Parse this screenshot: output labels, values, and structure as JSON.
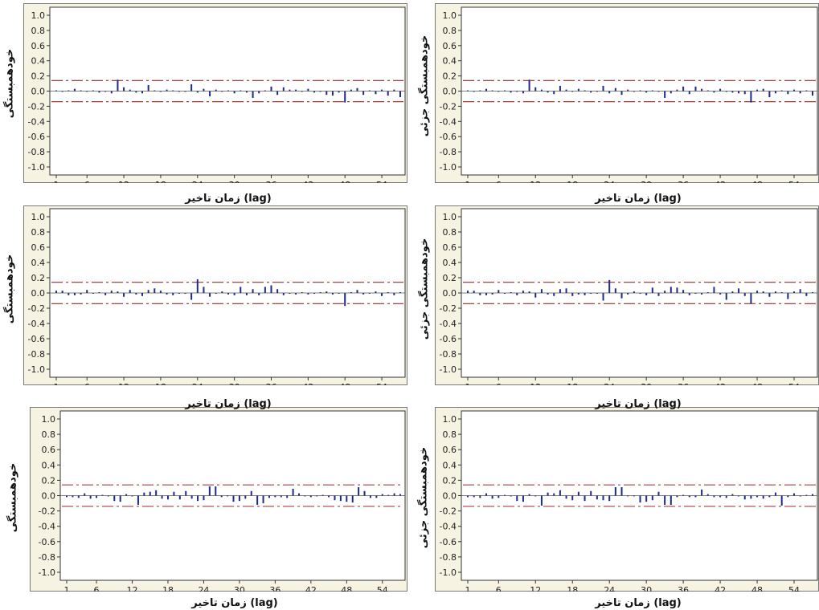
{
  "colors": {
    "frame_fill": "#f6f3e2",
    "plot_bg": "#ffffff",
    "bar": "#1d2a8c",
    "limit_line": "#9b2a2a",
    "zero_line": "#555555"
  },
  "axes_x_title": "زمان تاخیر (lag)",
  "chart_data": [
    {
      "type": "bar",
      "ylabel": "خودهمبستگی",
      "xlabel": "زمان تاخیر (lag)",
      "ylim": [
        -1.0,
        1.0
      ],
      "yticks": [
        1.0,
        0.8,
        0.6,
        0.4,
        0.2,
        0.0,
        -0.2,
        -0.4,
        -0.6,
        -0.8,
        -1.0
      ],
      "xticks": [
        1,
        6,
        12,
        18,
        24,
        30,
        36,
        42,
        48,
        54
      ],
      "lags": [
        1,
        57
      ],
      "limits": [
        0.14,
        -0.14
      ],
      "values": [
        0.01,
        -0.01,
        0.01,
        0.03,
        0.01,
        -0.01,
        0.01,
        -0.02,
        -0.01,
        -0.03,
        0.15,
        0.05,
        0.02,
        -0.02,
        -0.03,
        0.08,
        0.01,
        -0.01,
        0.02,
        0.01,
        -0.01,
        -0.01,
        0.09,
        -0.02,
        0.03,
        -0.07,
        0.02,
        -0.01,
        0.01,
        -0.03,
        0.01,
        -0.02,
        -0.09,
        -0.03,
        0.01,
        0.06,
        -0.05,
        0.05,
        0.02,
        0.02,
        -0.01,
        0.03,
        -0.02,
        -0.01,
        -0.05,
        -0.06,
        -0.02,
        -0.15,
        0.02,
        0.04,
        -0.05,
        0.01,
        -0.04,
        0.02,
        -0.06,
        0.02,
        -0.08
      ]
    },
    {
      "type": "bar",
      "ylabel": "خودهمبستگی جزئی",
      "xlabel": "زمان تاخیر (lag)",
      "ylim": [
        -1.0,
        1.0
      ],
      "yticks": [
        1.0,
        0.8,
        0.6,
        0.4,
        0.2,
        0.0,
        -0.2,
        -0.4,
        -0.6,
        -0.8,
        -1.0
      ],
      "xticks": [
        1,
        6,
        12,
        18,
        24,
        30,
        36,
        42,
        48,
        54
      ],
      "lags": [
        1,
        57
      ],
      "limits": [
        0.14,
        -0.14
      ],
      "values": [
        0.01,
        -0.01,
        0.01,
        0.03,
        0.01,
        -0.01,
        0.01,
        -0.02,
        -0.01,
        -0.03,
        0.15,
        0.05,
        0.02,
        -0.02,
        -0.04,
        0.07,
        0.02,
        -0.01,
        0.03,
        0.01,
        -0.02,
        -0.01,
        0.07,
        -0.03,
        0.04,
        -0.05,
        0.02,
        -0.01,
        0.01,
        -0.02,
        0.01,
        -0.01,
        -0.09,
        -0.03,
        0.02,
        0.06,
        -0.04,
        0.06,
        0.03,
        0.01,
        -0.02,
        0.03,
        -0.01,
        -0.02,
        -0.03,
        -0.04,
        -0.15,
        0.02,
        0.03,
        -0.08,
        -0.03,
        0.01,
        -0.04,
        0.02,
        -0.03,
        0.01,
        -0.06
      ]
    },
    {
      "type": "bar",
      "ylabel": "خودهمبستگی",
      "xlabel": "زمان تاخیر (lag)",
      "ylim": [
        -1.0,
        1.0
      ],
      "yticks": [
        1.0,
        0.8,
        0.6,
        0.4,
        0.2,
        0.0,
        -0.2,
        -0.4,
        -0.6,
        -0.8,
        -1.0
      ],
      "xticks": [
        1,
        6,
        12,
        18,
        24,
        30,
        36,
        42,
        48,
        54
      ],
      "lags": [
        1,
        57
      ],
      "limits": [
        0.14,
        -0.14
      ],
      "values": [
        0.03,
        0.03,
        -0.03,
        -0.03,
        -0.02,
        0.04,
        -0.01,
        0.01,
        -0.03,
        0.03,
        0.02,
        -0.05,
        0.04,
        -0.02,
        -0.04,
        0.04,
        0.06,
        0.03,
        -0.02,
        -0.03,
        -0.01,
        -0.01,
        -0.09,
        0.18,
        0.08,
        -0.05,
        -0.01,
        0.02,
        -0.02,
        -0.03,
        0.08,
        -0.03,
        0.05,
        -0.03,
        0.08,
        0.1,
        0.05,
        -0.03,
        -0.01,
        -0.02,
        0.01,
        -0.02,
        -0.01,
        0.01,
        0.02,
        -0.02,
        -0.01,
        -0.17,
        0.01,
        0.04,
        -0.02,
        -0.01,
        0.02,
        -0.04,
        0.01,
        -0.03,
        0.01
      ]
    },
    {
      "type": "bar",
      "ylabel": "خودهمبستگی جزئی",
      "xlabel": "زمان تاخیر (lag)",
      "ylim": [
        -1.0,
        1.0
      ],
      "yticks": [
        1.0,
        0.8,
        0.6,
        0.4,
        0.2,
        0.0,
        -0.2,
        -0.4,
        -0.6,
        -0.8,
        -1.0
      ],
      "xticks": [
        1,
        6,
        12,
        18,
        24,
        30,
        36,
        42,
        48,
        54
      ],
      "lags": [
        1,
        57
      ],
      "limits": [
        0.14,
        -0.14
      ],
      "values": [
        0.03,
        0.03,
        -0.03,
        -0.03,
        -0.02,
        0.04,
        -0.01,
        0.01,
        -0.03,
        0.03,
        0.02,
        -0.06,
        0.05,
        -0.02,
        -0.04,
        0.05,
        0.06,
        -0.04,
        -0.02,
        -0.03,
        -0.01,
        -0.01,
        -0.1,
        0.17,
        0.06,
        -0.07,
        -0.02,
        0.02,
        -0.01,
        -0.03,
        0.07,
        -0.04,
        0.03,
        0.08,
        0.07,
        0.04,
        -0.03,
        -0.01,
        -0.02,
        0.01,
        0.08,
        -0.02,
        -0.09,
        0.02,
        0.06,
        -0.04,
        -0.14,
        0.03,
        0.02,
        -0.05,
        0.02,
        0.01,
        -0.08,
        0.02,
        0.05,
        -0.04,
        0.01
      ]
    },
    {
      "type": "bar",
      "ylabel": "خودهمبستگی",
      "xlabel": "زمان تاخیر (lag)",
      "ylim": [
        -1.0,
        1.0
      ],
      "yticks": [
        1.0,
        0.8,
        0.6,
        0.4,
        0.2,
        0.0,
        -0.2,
        -0.4,
        -0.6,
        -0.8,
        -1.0
      ],
      "xticks": [
        1,
        6,
        12,
        18,
        24,
        30,
        36,
        42,
        48,
        54
      ],
      "lags": [
        1,
        57
      ],
      "limits": [
        0.14,
        -0.14
      ],
      "values": [
        -0.02,
        -0.02,
        -0.03,
        0.03,
        -0.04,
        -0.03,
        0.01,
        -0.01,
        -0.07,
        -0.08,
        0.02,
        -0.01,
        -0.12,
        0.04,
        0.05,
        0.07,
        -0.04,
        -0.05,
        0.05,
        -0.05,
        0.06,
        -0.04,
        -0.07,
        -0.06,
        0.12,
        0.12,
        -0.02,
        -0.01,
        -0.08,
        -0.07,
        -0.04,
        0.06,
        -0.12,
        -0.1,
        -0.03,
        -0.02,
        -0.02,
        -0.03,
        0.09,
        0.03,
        -0.01,
        -0.02,
        -0.01,
        0.01,
        -0.02,
        -0.06,
        -0.07,
        -0.08,
        -0.09,
        0.11,
        0.06,
        -0.03,
        -0.03,
        0.02,
        0.01,
        0.03,
        0.02
      ]
    },
    {
      "type": "bar",
      "ylabel": "خودهمبستگی جزئی",
      "xlabel": "زمان تاخیر (lag)",
      "ylim": [
        -1.0,
        1.0
      ],
      "yticks": [
        1.0,
        0.8,
        0.6,
        0.4,
        0.2,
        0.0,
        -0.2,
        -0.4,
        -0.6,
        -0.8,
        -1.0
      ],
      "xticks": [
        1,
        6,
        12,
        18,
        24,
        30,
        36,
        42,
        48,
        54
      ],
      "lags": [
        1,
        57
      ],
      "limits": [
        0.14,
        -0.14
      ],
      "values": [
        -0.02,
        -0.02,
        -0.03,
        0.03,
        -0.04,
        -0.03,
        0.01,
        -0.01,
        -0.07,
        -0.08,
        0.02,
        -0.01,
        -0.13,
        0.04,
        0.03,
        0.07,
        -0.04,
        -0.06,
        0.05,
        -0.07,
        0.06,
        -0.05,
        -0.06,
        -0.07,
        0.11,
        0.11,
        -0.01,
        -0.01,
        -0.09,
        -0.08,
        -0.06,
        0.05,
        -0.12,
        -0.12,
        -0.02,
        0.01,
        -0.02,
        -0.02,
        0.08,
        0.02,
        -0.02,
        -0.02,
        -0.03,
        0.02,
        -0.01,
        -0.05,
        -0.04,
        -0.02,
        -0.04,
        -0.02,
        0.04,
        -0.13,
        -0.02,
        0.03,
        -0.01,
        0.01,
        0.02
      ]
    }
  ]
}
